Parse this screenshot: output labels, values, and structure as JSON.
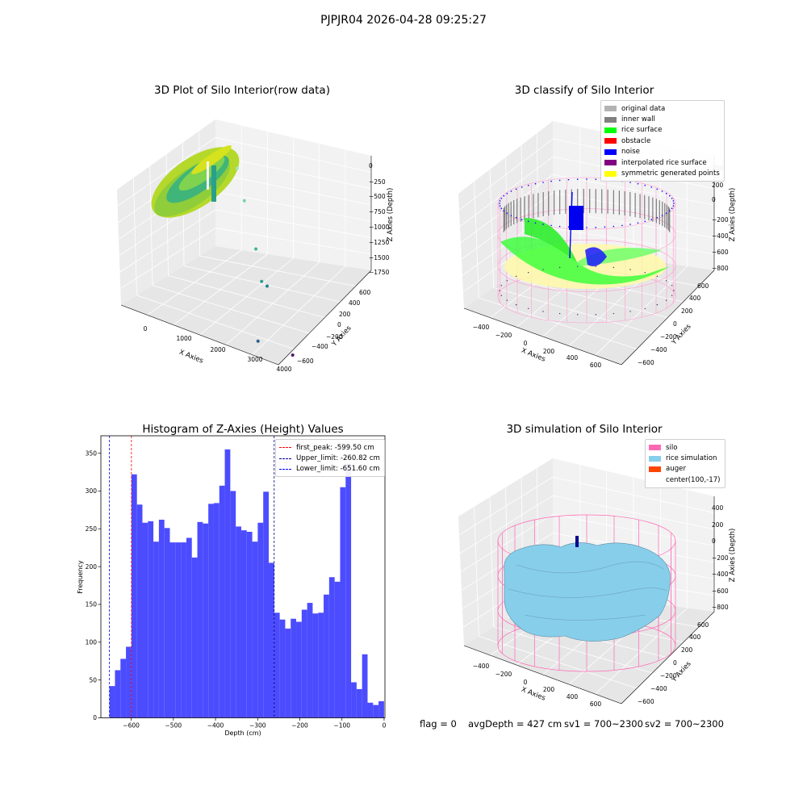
{
  "suptitle": "PJPJR04 2026-04-28 09:25:27",
  "footer": {
    "flag": "flag = 0",
    "avg_depth": "avgDepth = 427 cm",
    "sv1": "sv1 = 700~2300",
    "sv2": "sv2 = 700~2300"
  },
  "colors": {
    "original_data": "#b3b3b3",
    "inner_wall": "#808080",
    "rice_surface": "#00ff00",
    "obstacle": "#ff0000",
    "noise": "#0000ff",
    "interpolated_rice_surface": "#800080",
    "symmetric_generated_points": "#ffff00",
    "silo": "#ff69b4",
    "rice_simulation": "#87ceeb",
    "auger": "#ff4500",
    "hist_bar": "#4c4cff"
  },
  "chart_data": [
    {
      "type": "scatter",
      "title": "3D Plot of Silo Interior(row data)",
      "xlabel": "X Axies",
      "ylabel": "Y Axies",
      "zlabel": "Z Axies (Depth)",
      "x_ticks": [
        "0",
        "1000",
        "2000",
        "3000",
        "4000"
      ],
      "y_ticks": [
        "−600",
        "−400",
        "−200",
        "0",
        "200",
        "400",
        "600"
      ],
      "z_ticks": [
        "0",
        "−250",
        "−500",
        "−750",
        "−1000",
        "−1250",
        "−1500",
        "−1750"
      ],
      "outliers": [
        {
          "x": 1600,
          "y": 500,
          "z": -30
        },
        {
          "x": 1750,
          "y": 450,
          "z": -380
        },
        {
          "x": 1850,
          "y": 250,
          "z": -900
        },
        {
          "x": 1900,
          "y": 150,
          "z": -1250
        },
        {
          "x": 2000,
          "y": 100,
          "z": -1300
        },
        {
          "x": 2900,
          "y": -200,
          "z": -1650
        },
        {
          "x": 3900,
          "y": -500,
          "z": -1800
        }
      ]
    },
    {
      "type": "scatter",
      "title": "3D classify of Silo Interior",
      "xlabel": "X Axies",
      "ylabel": "Y Axies",
      "zlabel": "Z Axies (Depth)",
      "x_ticks": [
        "−400",
        "−200",
        "0",
        "200",
        "400",
        "600"
      ],
      "y_ticks": [
        "−600",
        "−400",
        "−200",
        "0",
        "200",
        "400",
        "600"
      ],
      "z_ticks": [
        "200",
        "0",
        "−200",
        "−400",
        "−600",
        "−800"
      ],
      "legend": {
        "placement": "top-right",
        "entries": [
          "original data",
          "inner wall",
          "rice surface",
          "obstacle",
          "noise",
          "interpolated rice surface",
          "symmetric generated points"
        ]
      }
    },
    {
      "type": "bar",
      "title": "Histogram of Z-Axies (Height) Values",
      "xlabel": "Depth (cm)",
      "ylabel": "Frequency",
      "xlim": [
        -672,
        2
      ],
      "ylim": [
        0,
        373
      ],
      "x_ticks": [
        -600,
        -500,
        -400,
        -300,
        -200,
        -100,
        0
      ],
      "x_tick_labels": [
        "−600",
        "−500",
        "−400",
        "−300",
        "−200",
        "−100",
        "0"
      ],
      "y_ticks": [
        0,
        50,
        100,
        150,
        200,
        250,
        300,
        350
      ],
      "bin_start": -651.6,
      "bin_width": 13.03,
      "values": [
        42,
        63,
        78,
        94,
        322,
        282,
        258,
        260,
        233,
        262,
        251,
        232,
        232,
        232,
        238,
        212,
        259,
        257,
        283,
        284,
        307,
        355,
        300,
        253,
        248,
        246,
        233,
        258,
        299,
        205,
        139,
        130,
        118,
        131,
        127,
        143,
        152,
        138,
        139,
        163,
        186,
        180,
        305,
        336,
        47,
        38,
        84,
        20,
        17,
        22
      ],
      "vlines": [
        {
          "x": -599.5,
          "color": "#ff0000"
        },
        {
          "x": -260.82,
          "color": "#00008b"
        },
        {
          "x": -651.6,
          "color": "#0000ff"
        }
      ],
      "legend": {
        "placement": "top-right",
        "entries": [
          "first_peak: -599.50 cm",
          "Upper_limit: -260.82 cm",
          "Lower_limit: -651.60 cm"
        ]
      }
    },
    {
      "type": "scatter",
      "title": "3D simulation of Silo Interior",
      "xlabel": "X Axies",
      "ylabel": "Y Axies",
      "zlabel": "Z Axies (Depth)",
      "x_ticks": [
        "−400",
        "−200",
        "0",
        "200",
        "400",
        "600"
      ],
      "y_ticks": [
        "−600",
        "−400",
        "−200",
        "0",
        "200",
        "400",
        "600"
      ],
      "z_ticks": [
        "400",
        "200",
        "0",
        "−200",
        "−400",
        "−600",
        "−800"
      ],
      "legend": {
        "placement": "top-right",
        "entries": [
          "silo",
          "rice simulation",
          "auger",
          "center(100,-17)"
        ]
      }
    }
  ]
}
